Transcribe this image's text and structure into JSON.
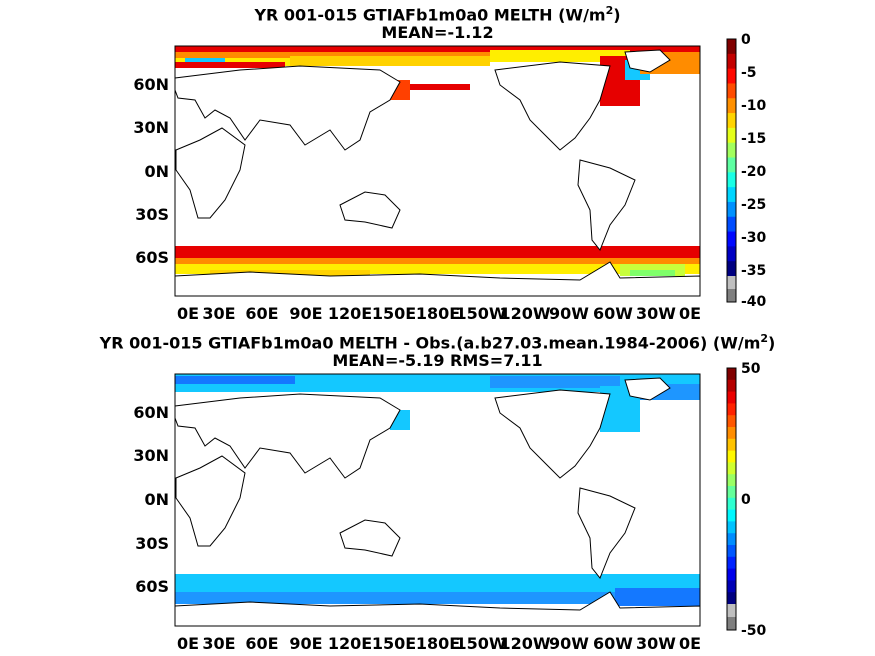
{
  "colors": {
    "land": "#ffffff",
    "coast": "#000000",
    "ice_red": "#e60000",
    "ice_orange": "#ff8c00",
    "ice_yellow": "#ffee00",
    "ice_green": "#7fff6a",
    "ice_cyan": "#14c8ff",
    "ice_blue": "#1478ff",
    "undefined_gray": "#bfbfbf",
    "below_gray": "#7f7f7f"
  },
  "chart_data": [
    {
      "type": "heatmap",
      "title": "YR 001-015 GTIAFb1m0a0  MELTH (W/m",
      "title_sup": "2",
      "title_tail": ")",
      "subtitle": "MEAN=-1.12",
      "x_ticks": [
        "0E",
        "30E",
        "60E",
        "90E",
        "120E",
        "150E",
        "180E",
        "150W",
        "120W",
        "90W",
        "60W",
        "30W",
        "0E"
      ],
      "y_ticks": [
        "60N",
        "30N",
        "0N",
        "30S",
        "60S"
      ],
      "colorbar": {
        "min": -40,
        "max": 0,
        "tick_labels": [
          "0",
          "-5",
          "-10",
          "-15",
          "-20",
          "-25",
          "-30",
          "-35",
          "-40"
        ],
        "palette": "jet_reversed"
      }
    },
    {
      "type": "heatmap",
      "title": "YR 001-015 GTIAFb1m0a0 MELTH - Obs.(a.b27.03.mean.1984-2006) (W/m",
      "title_sup": "2",
      "title_tail": ")",
      "subtitle": "MEAN=-5.19 RMS=7.11",
      "x_ticks": [
        "0E",
        "30E",
        "60E",
        "90E",
        "120E",
        "150E",
        "180E",
        "150W",
        "120W",
        "90W",
        "60W",
        "30W",
        "0E"
      ],
      "y_ticks": [
        "60N",
        "30N",
        "0N",
        "30S",
        "60S"
      ],
      "colorbar": {
        "min": -50,
        "max": 50,
        "tick_labels": [
          "50",
          "0",
          "-50"
        ],
        "palette": "jet"
      }
    }
  ]
}
